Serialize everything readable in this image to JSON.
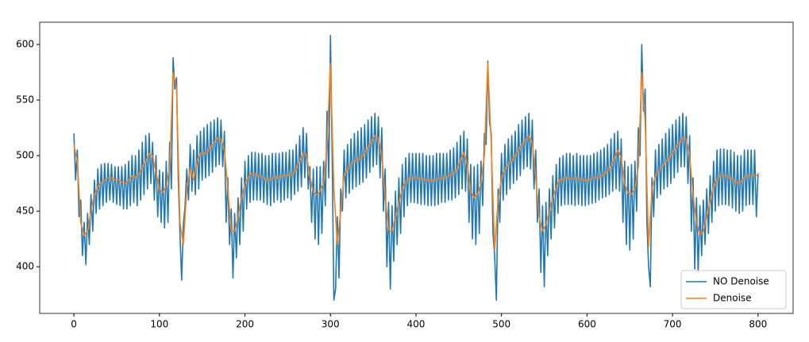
{
  "chart_data": {
    "type": "line",
    "x": [
      0,
      2,
      4,
      6,
      8,
      10,
      12,
      14,
      16,
      18,
      20,
      22,
      24,
      26,
      28,
      30,
      32,
      34,
      36,
      38,
      40,
      42,
      44,
      46,
      48,
      50,
      52,
      54,
      56,
      58,
      60,
      62,
      64,
      66,
      68,
      70,
      72,
      74,
      76,
      78,
      80,
      82,
      84,
      86,
      88,
      90,
      92,
      94,
      96,
      98,
      100,
      102,
      104,
      106,
      108,
      110,
      112,
      114,
      116,
      118,
      120,
      122,
      124,
      126,
      128,
      130,
      132,
      134,
      136,
      138,
      140,
      142,
      144,
      146,
      148,
      150,
      152,
      154,
      156,
      158,
      160,
      162,
      164,
      166,
      168,
      170,
      172,
      174,
      176,
      178,
      180,
      182,
      184,
      186,
      188,
      190,
      192,
      194,
      196,
      198,
      200,
      202,
      204,
      206,
      208,
      210,
      212,
      214,
      216,
      218,
      220,
      222,
      224,
      226,
      228,
      230,
      232,
      234,
      236,
      238,
      240,
      242,
      244,
      246,
      248,
      250,
      252,
      254,
      256,
      258,
      260,
      262,
      264,
      266,
      268,
      270,
      272,
      274,
      276,
      278,
      280,
      282,
      284,
      286,
      288,
      290,
      292,
      294,
      296,
      298,
      300,
      302,
      304,
      306,
      308,
      310,
      312,
      314,
      316,
      318,
      320,
      322,
      324,
      326,
      328,
      330,
      332,
      334,
      336,
      338,
      340,
      342,
      344,
      346,
      348,
      350,
      352,
      354,
      356,
      358,
      360,
      362,
      364,
      366,
      368,
      370,
      372,
      374,
      376,
      378,
      380,
      382,
      384,
      386,
      388,
      390,
      392,
      394,
      396,
      398,
      400,
      402,
      404,
      406,
      408,
      410,
      412,
      414,
      416,
      418,
      420,
      422,
      424,
      426,
      428,
      430,
      432,
      434,
      436,
      438,
      440,
      442,
      444,
      446,
      448,
      450,
      452,
      454,
      456,
      458,
      460,
      462,
      464,
      466,
      468,
      470,
      472,
      474,
      476,
      478,
      480,
      482,
      484,
      486,
      488,
      490,
      492,
      494,
      496,
      498,
      500,
      502,
      504,
      506,
      508,
      510,
      512,
      514,
      516,
      518,
      520,
      522,
      524,
      526,
      528,
      530,
      532,
      534,
      536,
      538,
      540,
      542,
      544,
      546,
      548,
      550,
      552,
      554,
      556,
      558,
      560,
      562,
      564,
      566,
      568,
      570,
      572,
      574,
      576,
      578,
      580,
      582,
      584,
      586,
      588,
      590,
      592,
      594,
      596,
      598,
      600,
      602,
      604,
      606,
      608,
      610,
      612,
      614,
      616,
      618,
      620,
      622,
      624,
      626,
      628,
      630,
      632,
      634,
      636,
      638,
      640,
      642,
      644,
      646,
      648,
      650,
      652,
      654,
      656,
      658,
      660,
      662,
      664,
      666,
      668,
      670,
      672,
      674,
      676,
      678,
      680,
      682,
      684,
      686,
      688,
      690,
      692,
      694,
      696,
      698,
      700,
      702,
      704,
      706,
      708,
      710,
      712,
      714,
      716,
      718,
      720,
      722,
      724,
      726,
      728,
      730,
      732,
      734,
      736,
      738,
      740,
      742,
      744,
      746,
      748,
      750,
      752,
      754,
      756,
      758,
      760,
      762,
      764,
      766,
      768,
      770,
      772,
      774,
      776,
      778,
      780,
      782,
      784,
      786,
      788,
      790,
      792,
      794,
      796,
      798,
      800
    ],
    "series": [
      {
        "name": "NO Denoise",
        "color": "#1f77b4",
        "values": [
          520,
          478,
          505,
          445,
          460,
          410,
          440,
          402,
          448,
          420,
          465,
          432,
          478,
          448,
          488,
          452,
          492,
          455,
          493,
          458,
          493,
          460,
          492,
          458,
          490,
          456,
          490,
          455,
          490,
          452,
          492,
          452,
          495,
          455,
          500,
          458,
          500,
          455,
          505,
          460,
          512,
          465,
          518,
          470,
          520,
          475,
          512,
          460,
          500,
          445,
          487,
          440,
          485,
          435,
          495,
          440,
          512,
          470,
          588,
          560,
          570,
          480,
          430,
          388,
          438,
          455,
          488,
          460,
          510,
          468,
          505,
          465,
          518,
          470,
          522,
          478,
          525,
          480,
          528,
          482,
          530,
          485,
          532,
          490,
          534,
          492,
          532,
          490,
          522,
          440,
          480,
          420,
          452,
          390,
          448,
          408,
          462,
          420,
          480,
          432,
          495,
          452,
          500,
          458,
          503,
          460,
          503,
          460,
          502,
          460,
          502,
          458,
          500,
          456,
          500,
          455,
          502,
          458,
          502,
          460,
          502,
          458,
          503,
          460,
          503,
          462,
          505,
          460,
          505,
          465,
          510,
          468,
          518,
          472,
          525,
          480,
          520,
          470,
          490,
          440,
          488,
          425,
          490,
          420,
          490,
          430,
          495,
          455,
          540,
          480,
          608,
          500,
          370,
          380,
          445,
          390,
          470,
          450,
          505,
          462,
          510,
          466,
          515,
          470,
          520,
          472,
          522,
          474,
          525,
          476,
          528,
          480,
          532,
          485,
          535,
          490,
          538,
          492,
          535,
          480,
          525,
          450,
          488,
          400,
          458,
          380,
          455,
          405,
          468,
          420,
          480,
          430,
          492,
          445,
          498,
          455,
          502,
          458,
          502,
          458,
          502,
          457,
          502,
          456,
          502,
          456,
          500,
          455,
          500,
          455,
          500,
          455,
          502,
          456,
          502,
          458,
          502,
          458,
          502,
          460,
          505,
          460,
          507,
          462,
          512,
          465,
          518,
          470,
          522,
          468,
          515,
          440,
          492,
          425,
          490,
          420,
          492,
          430,
          495,
          455,
          520,
          510,
          585,
          530,
          520,
          430,
          410,
          370,
          470,
          440,
          502,
          460,
          510,
          465,
          515,
          470,
          518,
          475,
          522,
          478,
          528,
          482,
          532,
          488,
          535,
          490,
          538,
          488,
          532,
          470,
          505,
          440,
          470,
          395,
          455,
          382,
          458,
          410,
          470,
          425,
          482,
          435,
          492,
          448,
          498,
          455,
          500,
          456,
          502,
          456,
          502,
          456,
          500,
          455,
          502,
          456,
          500,
          455,
          500,
          455,
          500,
          456,
          500,
          457,
          502,
          458,
          503,
          460,
          505,
          462,
          507,
          463,
          510,
          465,
          515,
          468,
          520,
          470,
          522,
          468,
          515,
          440,
          495,
          420,
          490,
          415,
          492,
          425,
          495,
          450,
          525,
          500,
          600,
          540,
          560,
          440,
          400,
          382,
          480,
          445,
          505,
          462,
          510,
          465,
          515,
          470,
          520,
          472,
          524,
          475,
          528,
          480,
          532,
          485,
          535,
          490,
          538,
          490,
          535,
          475,
          518,
          432,
          480,
          398,
          462,
          395,
          455,
          410,
          460,
          420,
          470,
          430,
          482,
          440,
          495,
          450,
          505,
          455,
          506,
          456,
          506,
          456,
          505,
          455,
          505,
          453,
          503,
          450,
          500,
          448,
          500,
          450,
          505,
          455,
          505,
          456,
          505,
          456,
          505,
          445,
          484
        ]
      },
      {
        "name": "Denoise",
        "color": "#ff7f0e",
        "values": [
          510,
          502,
          495,
          468,
          440,
          434,
          428,
          430,
          432,
          441,
          450,
          458,
          465,
          468,
          472,
          474,
          476,
          477,
          478,
          479,
          480,
          480,
          480,
          479,
          478,
          478,
          478,
          477,
          476,
          476,
          475,
          476,
          478,
          480,
          482,
          481,
          480,
          482,
          483,
          486,
          490,
          492,
          495,
          498,
          502,
          501,
          500,
          492,
          485,
          478,
          470,
          468,
          467,
          470,
          472,
          481,
          490,
          532,
          575,
          568,
          560,
          500,
          440,
          430,
          420,
          445,
          470,
          479,
          488,
          483,
          478,
          486,
          495,
          498,
          502,
          502,
          502,
          502,
          503,
          506,
          508,
          510,
          512,
          514,
          516,
          516,
          515,
          510,
          505,
          488,
          470,
          451,
          432,
          432,
          432,
          438,
          445,
          454,
          462,
          468,
          475,
          478,
          480,
          482,
          484,
          484,
          483,
          482,
          482,
          482,
          481,
          480,
          479,
          478,
          478,
          479,
          480,
          480,
          481,
          480,
          480,
          481,
          482,
          482,
          482,
          482,
          483,
          483,
          483,
          486,
          488,
          492,
          495,
          499,
          503,
          502,
          500,
          491,
          482,
          474,
          467,
          466,
          465,
          466,
          468,
          472,
          475,
          492,
          510,
          546,
          583,
          526,
          470,
          445,
          420,
          435,
          450,
          466,
          482,
          485,
          488,
          490,
          492,
          494,
          495,
          496,
          496,
          497,
          498,
          500,
          502,
          505,
          508,
          510,
          513,
          516,
          518,
          517,
          516,
          508,
          500,
          481,
          462,
          448,
          433,
          432,
          432,
          438,
          445,
          452,
          458,
          464,
          470,
          474,
          477,
          478,
          479,
          480,
          480,
          480,
          480,
          480,
          479,
          479,
          479,
          478,
          478,
          478,
          478,
          478,
          478,
          478,
          479,
          480,
          480,
          480,
          479,
          480,
          481,
          482,
          482,
          483,
          484,
          486,
          488,
          492,
          496,
          500,
          503,
          498,
          493,
          480,
          468,
          465,
          462,
          464,
          465,
          470,
          475,
          488,
          500,
          542,
          583,
          546,
          510,
          462,
          415,
          438,
          460,
          470,
          480,
          484,
          488,
          490,
          492,
          494,
          495,
          498,
          500,
          502,
          505,
          508,
          510,
          512,
          514,
          516,
          518,
          515,
          512,
          496,
          480,
          462,
          445,
          438,
          432,
          435,
          438,
          444,
          450,
          456,
          462,
          467,
          472,
          475,
          478,
          478,
          479,
          480,
          480,
          480,
          479,
          479,
          479,
          480,
          480,
          480,
          479,
          478,
          478,
          478,
          478,
          478,
          479,
          480,
          480,
          480,
          480,
          480,
          481,
          482,
          483,
          484,
          486,
          488,
          491,
          494,
          497,
          501,
          505,
          502,
          498,
          486,
          475,
          470,
          466,
          466,
          465,
          468,
          470,
          480,
          490,
          532,
          575,
          552,
          530,
          474,
          418,
          444,
          470,
          476,
          482,
          484,
          486,
          488,
          490,
          492,
          494,
          496,
          498,
          500,
          502,
          504,
          507,
          510,
          512,
          514,
          516,
          516,
          515,
          508,
          500,
          482,
          465,
          452,
          440,
          434,
          428,
          430,
          432,
          438,
          445,
          452,
          460,
          466,
          472,
          476,
          479,
          480,
          482,
          482,
          482,
          482,
          481,
          480,
          480,
          479,
          478,
          476,
          475,
          476,
          476,
          478,
          480,
          481,
          482,
          482,
          482,
          482,
          482,
          482,
          483
        ]
      }
    ],
    "xlim": [
      -40,
      841
    ],
    "xticks": [
      0,
      100,
      200,
      300,
      400,
      500,
      600,
      700,
      800
    ],
    "ylim": [
      358,
      620
    ],
    "yticks": [
      400,
      450,
      500,
      550,
      600
    ],
    "legend": "lower right"
  }
}
